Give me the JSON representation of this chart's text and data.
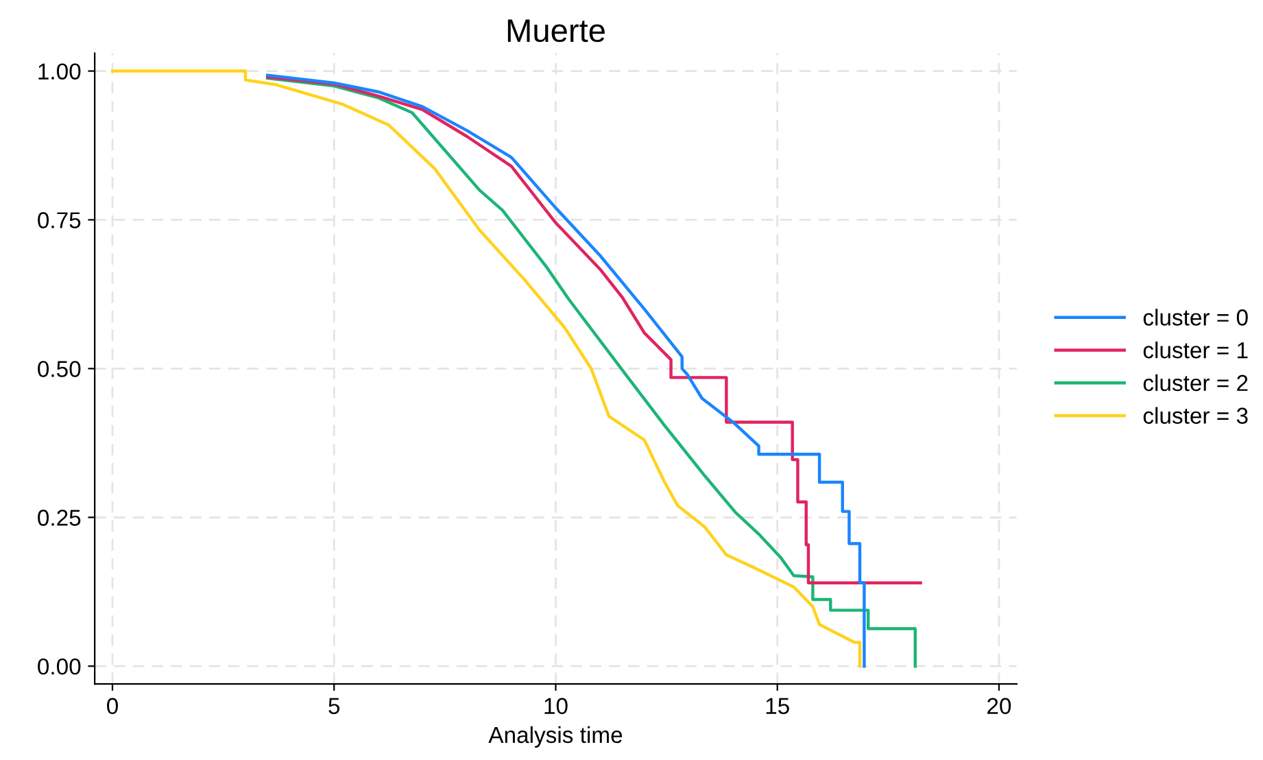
{
  "chart_data": {
    "type": "line",
    "title": "Muerte",
    "xlabel": "Analysis time",
    "xlim": [
      -0.4,
      20.4
    ],
    "ylim": [
      -0.03,
      1.03
    ],
    "xticks": [
      0,
      5,
      10,
      15,
      20
    ],
    "yticks": [
      {
        "value": 0,
        "label": "0.00"
      },
      {
        "value": 0.25,
        "label": "0.25"
      },
      {
        "value": 0.5,
        "label": "0.50"
      },
      {
        "value": 0.75,
        "label": "0.75"
      },
      {
        "value": 1,
        "label": "1.00"
      }
    ],
    "grid": true,
    "legend": "right",
    "line_style": "solid",
    "marker": "none",
    "series": [
      {
        "name": "cluster = 0",
        "color": "#1a85ff",
        "x": [
          3.5,
          5,
          6,
          7,
          8,
          9,
          10,
          11,
          12,
          12.85,
          12.85,
          12.97,
          13.3,
          14.0,
          14.58,
          14.58,
          15.95,
          15.95,
          16.47,
          16.47,
          16.62,
          16.62,
          16.86,
          16.86,
          16.96,
          16.96
        ],
        "values": [
          0.993,
          0.98,
          0.965,
          0.94,
          0.9,
          0.855,
          0.77,
          0.69,
          0.6,
          0.52,
          0.5,
          0.49,
          0.45,
          0.41,
          0.37,
          0.356,
          0.356,
          0.309,
          0.309,
          0.26,
          0.26,
          0.206,
          0.206,
          0.14,
          0.14,
          0
        ]
      },
      {
        "name": "cluster = 1",
        "color": "#e0245e",
        "x": [
          3.5,
          5,
          6,
          7,
          8,
          9,
          10,
          11,
          11.5,
          12,
          12.6,
          12.6,
          13.85,
          13.85,
          15.34,
          15.34,
          15.46,
          15.46,
          15.65,
          15.65,
          15.7,
          15.7,
          18.23
        ],
        "values": [
          0.99,
          0.978,
          0.958,
          0.935,
          0.89,
          0.84,
          0.745,
          0.667,
          0.62,
          0.56,
          0.515,
          0.485,
          0.485,
          0.41,
          0.41,
          0.347,
          0.347,
          0.276,
          0.276,
          0.204,
          0.204,
          0.14,
          0.14
        ]
      },
      {
        "name": "cluster = 2",
        "color": "#1db576",
        "x": [
          3.5,
          5,
          6,
          6.76,
          8.28,
          8.8,
          9.8,
          10.3,
          11.63,
          12.45,
          13.36,
          14.06,
          14.58,
          15.07,
          15.37,
          15.8,
          15.8,
          16.2,
          16.2,
          17.05,
          17.05,
          18.11,
          18.11
        ],
        "values": [
          0.988,
          0.975,
          0.955,
          0.93,
          0.8,
          0.766,
          0.67,
          0.616,
          0.485,
          0.405,
          0.32,
          0.258,
          0.222,
          0.183,
          0.152,
          0.15,
          0.112,
          0.112,
          0.094,
          0.094,
          0.063,
          0.063,
          0
        ]
      },
      {
        "name": "cluster = 3",
        "color": "#ffd21f",
        "x": [
          0,
          3,
          3,
          3.7,
          5.2,
          6.24,
          7.27,
          8.28,
          9.3,
          10.2,
          10.8,
          11.2,
          12.0,
          12.45,
          12.75,
          13.36,
          13.85,
          14.52,
          15.37,
          15.8,
          15.95,
          16.74,
          16.86,
          16.86
        ],
        "values": [
          1,
          1,
          0.985,
          0.977,
          0.944,
          0.909,
          0.836,
          0.733,
          0.649,
          0.569,
          0.5,
          0.42,
          0.38,
          0.31,
          0.27,
          0.234,
          0.187,
          0.164,
          0.133,
          0.1,
          0.07,
          0.04,
          0.04,
          0
        ]
      }
    ]
  }
}
